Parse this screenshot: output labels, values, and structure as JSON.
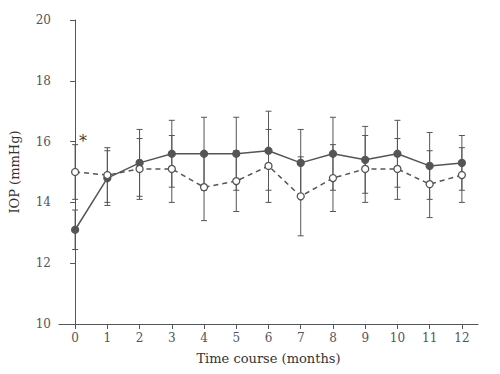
{
  "chart_data": {
    "type": "line",
    "xlabel": "Time course (months)",
    "ylabel": "IOP (mmHg)",
    "x": [
      0,
      1,
      2,
      3,
      4,
      5,
      6,
      7,
      8,
      9,
      10,
      11,
      12
    ],
    "series": [
      {
        "values": [
          13.1,
          14.8,
          15.3,
          15.6,
          15.6,
          15.6,
          15.7,
          15.3,
          15.6,
          15.4,
          15.6,
          15.2,
          15.3
        ],
        "errors": [
          0.65,
          0.9,
          1.1,
          1.1,
          1.2,
          1.2,
          1.3,
          1.1,
          1.2,
          1.1,
          1.1,
          1.1,
          0.9
        ],
        "color": "#555555",
        "marker": "filled_circle",
        "line_style": "solid"
      },
      {
        "values": [
          15.0,
          14.9,
          15.1,
          15.1,
          14.5,
          14.7,
          15.2,
          14.2,
          14.8,
          15.1,
          15.1,
          14.6,
          14.9
        ],
        "errors": [
          0.9,
          0.9,
          1.0,
          1.1,
          1.1,
          1.0,
          1.2,
          1.3,
          1.1,
          1.1,
          1.0,
          1.1,
          0.9
        ],
        "color": "#555555",
        "marker": "open_circle",
        "line_style": "dashed"
      }
    ],
    "annotations": [
      {
        "text": "*",
        "x": 0.12,
        "y": 16.0
      }
    ],
    "xlim": [
      -0.5,
      12.5
    ],
    "xticks": [
      0,
      1,
      2,
      3,
      4,
      5,
      6,
      7,
      8,
      9,
      10,
      11,
      12
    ],
    "ylim": [
      10,
      20
    ],
    "yticks": [
      10,
      12,
      14,
      16,
      18,
      20
    ],
    "grid": false
  }
}
